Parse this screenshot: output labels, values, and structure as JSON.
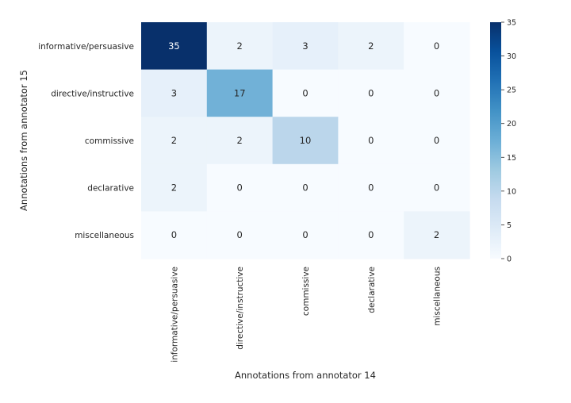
{
  "chart_data": {
    "type": "heatmap",
    "title": "",
    "xlabel": "Annotations from annotator 14",
    "ylabel": "Annotations from annotator 15",
    "x_categories": [
      "informative/persuasive",
      "directive/instructive",
      "commissive",
      "declarative",
      "miscellaneous"
    ],
    "y_categories": [
      "informative/persuasive",
      "directive/instructive",
      "commissive",
      "declarative",
      "miscellaneous"
    ],
    "values": [
      [
        35,
        2,
        3,
        2,
        0
      ],
      [
        3,
        17,
        0,
        0,
        0
      ],
      [
        2,
        2,
        10,
        0,
        0
      ],
      [
        2,
        0,
        0,
        0,
        0
      ],
      [
        0,
        0,
        0,
        0,
        2
      ]
    ],
    "vmin": 0,
    "vmax": 35,
    "colorbar_ticks": [
      "0",
      "5",
      "10",
      "15",
      "20",
      "25",
      "30",
      "35"
    ],
    "colormap": "Blues",
    "colormap_stops": [
      "#f7fbff",
      "#deebf7",
      "#c6dbef",
      "#9ecae1",
      "#6baed6",
      "#4292c6",
      "#2171b5",
      "#08519c",
      "#08306b"
    ],
    "annotation_color_light": "#ffffff",
    "annotation_color_dark": "#262626",
    "grid": false
  }
}
